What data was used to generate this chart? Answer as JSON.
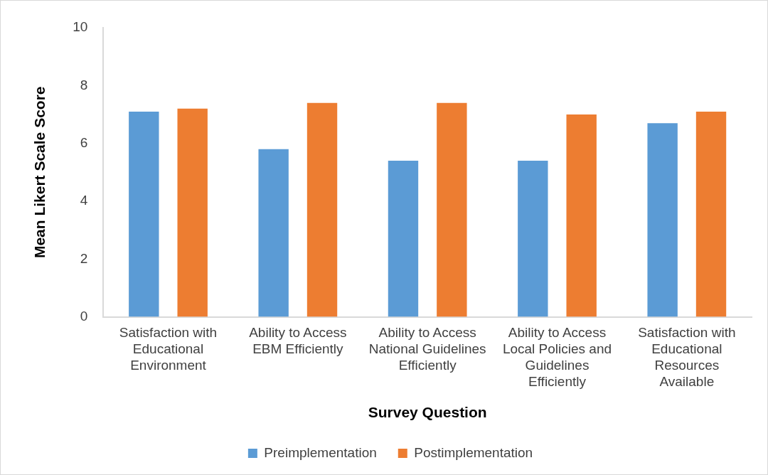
{
  "chart_data": {
    "type": "bar",
    "categories": [
      "Satisfaction with Educational Environment",
      "Ability to Access EBM Efficiently",
      "Ability to Access National Guidelines Efficiently",
      "Ability to Access Local Policies and Guidelines Efficiently",
      "Satisfaction with Educational Resources Available"
    ],
    "series": [
      {
        "name": "Preimplementation",
        "color": "#5b9bd5",
        "values": [
          7.1,
          5.8,
          5.4,
          5.4,
          6.7
        ]
      },
      {
        "name": "Postimplementation",
        "color": "#ed7d31",
        "values": [
          7.2,
          7.4,
          7.4,
          7.0,
          7.1
        ]
      }
    ],
    "xlabel": "Survey Question",
    "ylabel": "Mean Likert Scale Score",
    "ylim": [
      0,
      10
    ],
    "yticks": [
      0,
      2,
      4,
      6,
      8,
      10
    ],
    "grid": false,
    "legend": "bottom"
  }
}
